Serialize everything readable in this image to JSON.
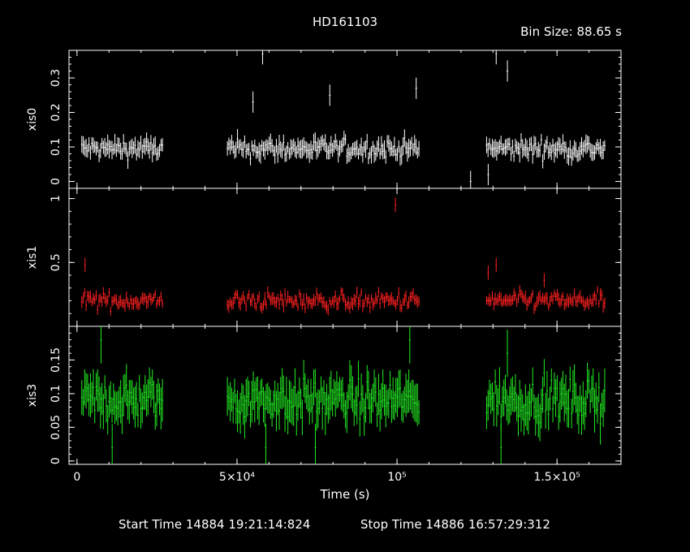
{
  "header": {
    "title": "HD161103",
    "bin_size": "Bin Size: 88.65 s"
  },
  "footer": {
    "start_time": "Start Time 14884 19:21:14:824",
    "stop_time": "Stop Time 14886 16:57:29:312"
  },
  "chart_data": {
    "type": "scatter",
    "title": "HD161103",
    "xlabel": "Time (s)",
    "xlim": [
      -2500,
      170000
    ],
    "xticks": [
      {
        "value": 0,
        "label": "0"
      },
      {
        "value": 50000,
        "label": "5×10⁴"
      },
      {
        "value": 100000,
        "label": "10⁵"
      },
      {
        "value": 150000,
        "label": "1.5×10⁵"
      }
    ],
    "colors": {
      "xis0": "#ffffff",
      "xis1": "#ff2020",
      "xis3": "#22ee22",
      "axes": "#ffffff",
      "background": "#000000"
    },
    "panels": [
      {
        "name": "xis0",
        "ylabel": "xis0",
        "ylim": [
          -0.02,
          0.38
        ],
        "yticks": [
          {
            "value": 0,
            "label": "0"
          },
          {
            "value": 0.1,
            "label": "0.1"
          },
          {
            "value": 0.2,
            "label": "0.2"
          },
          {
            "value": 0.3,
            "label": "0.3"
          }
        ],
        "segments": [
          [
            1500,
            27000
          ],
          [
            47000,
            107000
          ],
          [
            128000,
            165000
          ]
        ],
        "mean": 0.095,
        "noise": 0.018,
        "err": 0.022,
        "outliers": [
          [
            58000,
            0.37
          ],
          [
            131000,
            0.37
          ],
          [
            134500,
            0.32
          ],
          [
            55000,
            0.23
          ],
          [
            79000,
            0.25
          ],
          [
            106000,
            0.27
          ],
          [
            123000,
            0.0
          ],
          [
            128500,
            0.02
          ]
        ]
      },
      {
        "name": "xis1",
        "ylabel": "xis1",
        "ylim": [
          0.0,
          1.08
        ],
        "yticks": [
          {
            "value": 0.5,
            "label": "0.5"
          },
          {
            "value": 1,
            "label": "1"
          }
        ],
        "segments": [
          [
            1500,
            27000
          ],
          [
            47000,
            107000
          ],
          [
            128000,
            165000
          ]
        ],
        "mean": 0.2,
        "noise": 0.045,
        "err": 0.04,
        "outliers": [
          [
            99500,
            0.95
          ],
          [
            131000,
            0.48
          ],
          [
            2500,
            0.48
          ],
          [
            128500,
            0.42
          ],
          [
            146000,
            0.36
          ]
        ]
      },
      {
        "name": "xis3",
        "ylabel": "xis3",
        "ylim": [
          -0.005,
          0.2
        ],
        "yticks": [
          {
            "value": 0,
            "label": "0"
          },
          {
            "value": 0.05,
            "label": "0.05"
          },
          {
            "value": 0.1,
            "label": "0.1"
          },
          {
            "value": 0.15,
            "label": "0.15"
          }
        ],
        "segments": [
          [
            1500,
            27000
          ],
          [
            47000,
            107000
          ],
          [
            128000,
            165000
          ]
        ],
        "mean": 0.09,
        "noise": 0.02,
        "err": 0.025,
        "outliers": [
          [
            7500,
            0.18
          ],
          [
            11000,
            0.02
          ],
          [
            59000,
            0.02
          ],
          [
            74500,
            0.02
          ],
          [
            104000,
            0.18
          ],
          [
            132500,
            0.02
          ],
          [
            134500,
            0.16
          ]
        ]
      }
    ]
  }
}
